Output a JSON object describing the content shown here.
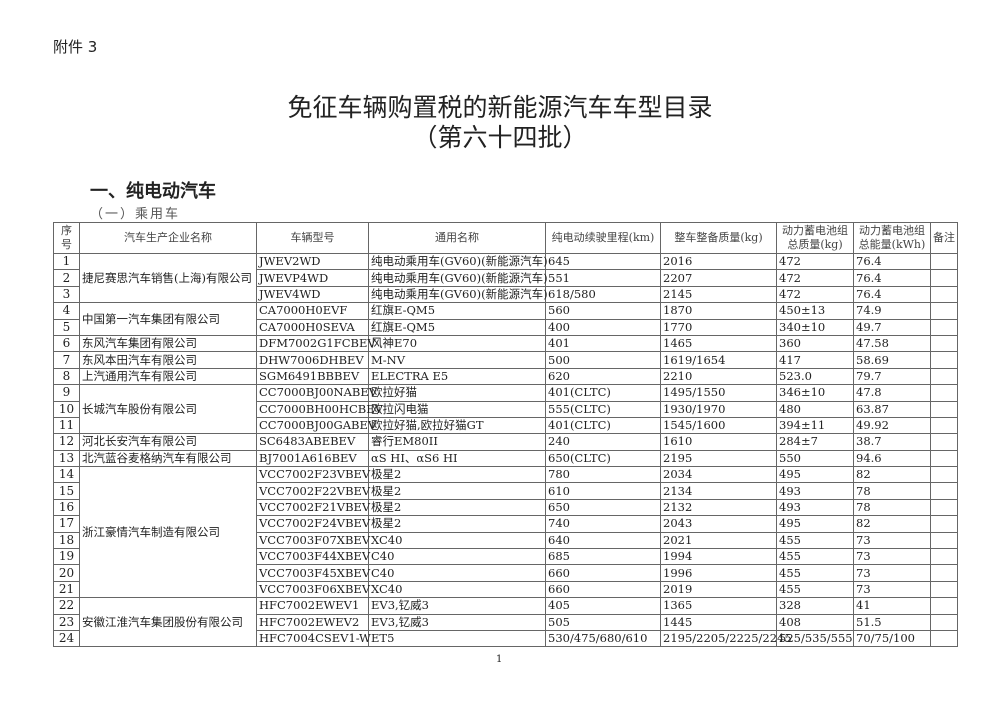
{
  "attachment": "附件 3",
  "title": "免征车辆购置税的新能源汽车车型目录",
  "batch": "（第六十四批）",
  "section": "一、纯电动汽车",
  "subsection": "（一）乘用车",
  "page_number": "1",
  "headers": [
    "序号",
    "汽车生产企业名称",
    "车辆型号",
    "通用名称",
    "纯电动续驶里程(km)",
    "整车整备质量(kg)",
    "动力蓄电池组总质量(kg)",
    "动力蓄电池组总能量(kWh)",
    "备注"
  ],
  "companies": [
    {
      "name": "捷尼赛思汽车销售(上海)有限公司",
      "span": 3
    },
    {
      "name": "中国第一汽车集团有限公司",
      "span": 2
    },
    {
      "name": "东风汽车集团有限公司",
      "span": 1
    },
    {
      "name": "东风本田汽车有限公司",
      "span": 1
    },
    {
      "name": "上汽通用汽车有限公司",
      "span": 1
    },
    {
      "name": "长城汽车股份有限公司",
      "span": 3
    },
    {
      "name": "河北长安汽车有限公司",
      "span": 1
    },
    {
      "name": "北汽蓝谷麦格纳汽车有限公司",
      "span": 1
    },
    {
      "name": "浙江豪情汽车制造有限公司",
      "span": 8
    },
    {
      "name": "安徽江淮汽车集团股份有限公司",
      "span": 3
    }
  ],
  "rows": [
    [
      "1",
      "JWEV2WD",
      "纯电动乘用车(GV60)(新能源汽车)",
      "645",
      "2016",
      "472",
      "76.4",
      ""
    ],
    [
      "2",
      "JWEVP4WD",
      "纯电动乘用车(GV60)(新能源汽车)",
      "551",
      "2207",
      "472",
      "76.4",
      ""
    ],
    [
      "3",
      "JWEV4WD",
      "纯电动乘用车(GV60)(新能源汽车)",
      "618/580",
      "2145",
      "472",
      "76.4",
      ""
    ],
    [
      "4",
      "CA7000H0EVF",
      "红旗E-QM5",
      "560",
      "1870",
      "450±13",
      "74.9",
      ""
    ],
    [
      "5",
      "CA7000H0SEVA",
      "红旗E-QM5",
      "400",
      "1770",
      "340±10",
      "49.7",
      ""
    ],
    [
      "6",
      "DFM7002G1FCBEV",
      "风神E70",
      "401",
      "1465",
      "360",
      "47.58",
      ""
    ],
    [
      "7",
      "DHW7006DHBEV",
      "M-NV",
      "500",
      "1619/1654",
      "417",
      "58.69",
      ""
    ],
    [
      "8",
      "SGM6491BBBEV",
      "ELECTRA E5",
      "620",
      "2210",
      "523.0",
      "79.7",
      ""
    ],
    [
      "9",
      "CC7000BJ00NABEV",
      "欧拉好猫",
      "401(CLTC)",
      "1495/1550",
      "346±10",
      "47.8",
      ""
    ],
    [
      "10",
      "CC7000BH00HCBEV",
      "欧拉闪电猫",
      "555(CLTC)",
      "1930/1970",
      "480",
      "63.87",
      ""
    ],
    [
      "11",
      "CC7000BJ00GABEV",
      "欧拉好猫,欧拉好猫GT",
      "401(CLTC)",
      "1545/1600",
      "394±11",
      "49.92",
      ""
    ],
    [
      "12",
      "SC6483ABEBEV",
      "睿行EM80II",
      "240",
      "1610",
      "284±7",
      "38.7",
      ""
    ],
    [
      "13",
      "BJ7001A616BEV",
      "αS HI、αS6 HI",
      "650(CLTC)",
      "2195",
      "550",
      "94.6",
      ""
    ],
    [
      "14",
      "VCC7002F23VBEV",
      "极星2",
      "780",
      "2034",
      "495",
      "82",
      ""
    ],
    [
      "15",
      "VCC7002F22VBEV",
      "极星2",
      "610",
      "2134",
      "493",
      "78",
      ""
    ],
    [
      "16",
      "VCC7002F21VBEV",
      "极星2",
      "650",
      "2132",
      "493",
      "78",
      ""
    ],
    [
      "17",
      "VCC7002F24VBEV",
      "极星2",
      "740",
      "2043",
      "495",
      "82",
      ""
    ],
    [
      "18",
      "VCC7003F07XBEV",
      "XC40",
      "640",
      "2021",
      "455",
      "73",
      ""
    ],
    [
      "19",
      "VCC7003F44XBEV",
      "C40",
      "685",
      "1994",
      "455",
      "73",
      ""
    ],
    [
      "20",
      "VCC7003F45XBEV",
      "C40",
      "660",
      "1996",
      "455",
      "73",
      ""
    ],
    [
      "21",
      "VCC7003F06XBEV",
      "XC40",
      "660",
      "2019",
      "455",
      "73",
      ""
    ],
    [
      "22",
      "HFC7002EWEV1",
      "EV3,钇威3",
      "405",
      "1365",
      "328",
      "41",
      ""
    ],
    [
      "23",
      "HFC7002EWEV2",
      "EV3,钇威3",
      "505",
      "1445",
      "408",
      "51.5",
      ""
    ],
    [
      "24",
      "HFC7004CSEV1-W",
      "ET5",
      "530/475/680/610",
      "2195/2205/2225/2245",
      "525/535/555",
      "70/75/100",
      ""
    ]
  ]
}
